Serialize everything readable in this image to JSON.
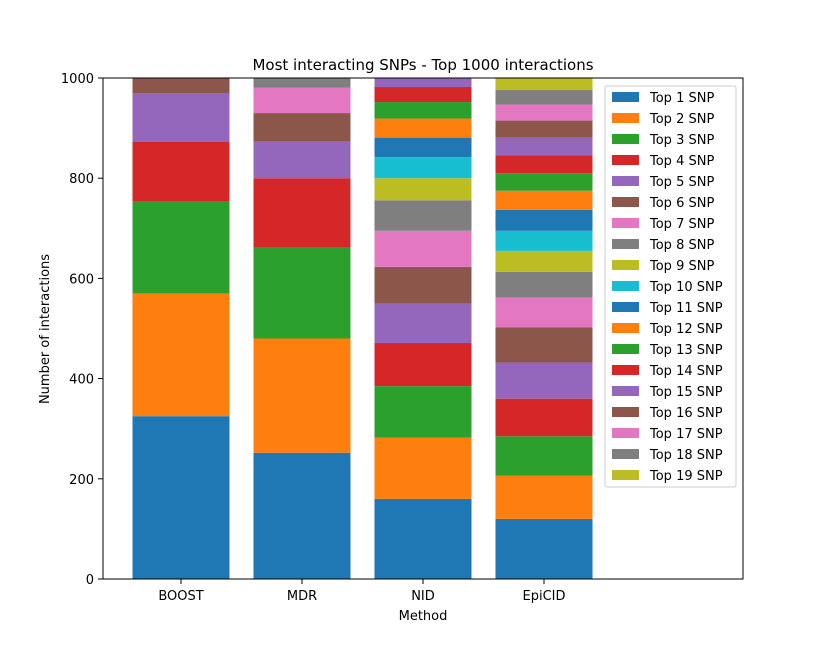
{
  "chart_data": {
    "type": "bar",
    "stacked": true,
    "title": "Most interacting SNPs - Top 1000 interactions",
    "xlabel": "Method",
    "ylabel": "Number of interactions",
    "ylim": [
      0,
      1000
    ],
    "yticks": [
      0,
      200,
      400,
      600,
      800,
      1000
    ],
    "categories": [
      "BOOST",
      "MDR",
      "NID",
      "EpiCID"
    ],
    "grid": false,
    "legend_position": "upper-right",
    "series": [
      {
        "name": "Top 1 SNP",
        "color": "#1f77b4",
        "values": [
          325,
          252,
          160,
          120
        ]
      },
      {
        "name": "Top 2 SNP",
        "color": "#ff7f0e",
        "values": [
          245,
          228,
          122,
          86
        ]
      },
      {
        "name": "Top 3 SNP",
        "color": "#2ca02c",
        "values": [
          183,
          181,
          103,
          79
        ]
      },
      {
        "name": "Top 4 SNP",
        "color": "#d62728",
        "values": [
          120,
          139,
          86,
          75
        ]
      },
      {
        "name": "Top 5 SNP",
        "color": "#9467bd",
        "values": [
          97,
          73,
          79,
          72
        ]
      },
      {
        "name": "Top 6 SNP",
        "color": "#8c564b",
        "values": [
          30,
          57,
          73,
          70
        ]
      },
      {
        "name": "Top 7 SNP",
        "color": "#e377c2",
        "values": [
          0,
          51,
          72,
          60
        ]
      },
      {
        "name": "Top 8 SNP",
        "color": "#7f7f7f",
        "values": [
          0,
          19,
          61,
          51
        ]
      },
      {
        "name": "Top 9 SNP",
        "color": "#bcbd22",
        "values": [
          0,
          0,
          44,
          42
        ]
      },
      {
        "name": "Top 10 SNP",
        "color": "#17becf",
        "values": [
          0,
          0,
          42,
          40
        ]
      },
      {
        "name": "Top 11 SNP",
        "color": "#1f77b4",
        "values": [
          0,
          0,
          39,
          42
        ]
      },
      {
        "name": "Top 12 SNP",
        "color": "#ff7f0e",
        "values": [
          0,
          0,
          38,
          38
        ]
      },
      {
        "name": "Top 13 SNP",
        "color": "#2ca02c",
        "values": [
          0,
          0,
          33,
          35
        ]
      },
      {
        "name": "Top 14 SNP",
        "color": "#d62728",
        "values": [
          0,
          0,
          30,
          36
        ]
      },
      {
        "name": "Top 15 SNP",
        "color": "#9467bd",
        "values": [
          0,
          0,
          18,
          35
        ]
      },
      {
        "name": "Top 16 SNP",
        "color": "#8c564b",
        "values": [
          0,
          0,
          0,
          34
        ]
      },
      {
        "name": "Top 17 SNP",
        "color": "#e377c2",
        "values": [
          0,
          0,
          0,
          32
        ]
      },
      {
        "name": "Top 18 SNP",
        "color": "#7f7f7f",
        "values": [
          0,
          0,
          0,
          29
        ]
      },
      {
        "name": "Top 19 SNP",
        "color": "#bcbd22",
        "values": [
          0,
          0,
          0,
          24
        ]
      }
    ]
  }
}
